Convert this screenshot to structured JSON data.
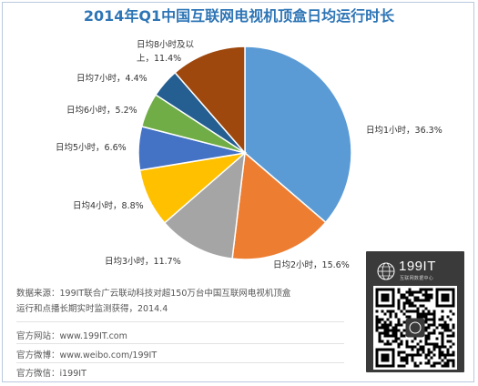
{
  "chart_data": {
    "type": "pie",
    "title": "2014年Q1中国互联网电视机顶盒日均运行时长",
    "start_angle_deg": 0,
    "direction": "clockwise",
    "slices": [
      {
        "label": "日均1小时，36.3%",
        "value": 36.3,
        "color": "#5b9bd5"
      },
      {
        "label": "日均2小时，15.6%",
        "value": 15.6,
        "color": "#ed7d31"
      },
      {
        "label": "日均3小时，11.7%",
        "value": 11.7,
        "color": "#a5a5a5"
      },
      {
        "label": "日均4小时，8.8%",
        "value": 8.8,
        "color": "#ffc000"
      },
      {
        "label": "日均5小时，6.6%",
        "value": 6.6,
        "color": "#4472c4"
      },
      {
        "label": "日均6小时，5.2%",
        "value": 5.2,
        "color": "#70ad47"
      },
      {
        "label": "日均7小时，4.4%",
        "value": 4.4,
        "color": "#255e91"
      },
      {
        "label": "日均8小时及以上，11.4%",
        "label_lines": [
          "日均8小时及以",
          "上，11.4%"
        ],
        "value": 11.4,
        "color": "#9e480e"
      }
    ]
  },
  "source": {
    "line1": "数据来源：199IT联合广云联动科技对超150万台中国互联网电视机顶盒",
    "line2": "运行和点播长期实时监测获得，2014.4"
  },
  "contacts": [
    "官方网站：www.199IT.com",
    "官方微博：www.weibo.com/199IT",
    "官方微信：i199IT"
  ],
  "logo": {
    "text": "199IT",
    "tagline": "互联网数据中心"
  }
}
